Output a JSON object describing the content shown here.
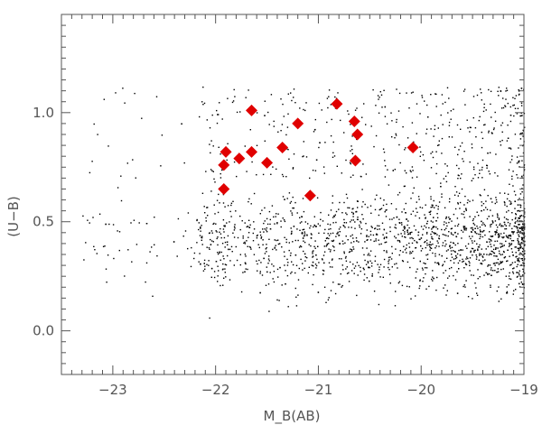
{
  "chart_data": {
    "type": "scatter",
    "title": "",
    "xlabel": "M_B(AB)",
    "ylabel": "(U−B)",
    "xlim": [
      -23.5,
      -19
    ],
    "ylim": [
      -0.2,
      1.45
    ],
    "xticks": [
      {
        "value": -23,
        "label": "−23"
      },
      {
        "value": -22,
        "label": "−22"
      },
      {
        "value": -21,
        "label": "−21"
      },
      {
        "value": -20,
        "label": "−20"
      },
      {
        "value": -19,
        "label": "−19"
      }
    ],
    "yticks": [
      {
        "value": 0.0,
        "label": "0.0"
      },
      {
        "value": 0.5,
        "label": "0.5"
      },
      {
        "value": 1.0,
        "label": "1.0"
      }
    ],
    "x_minor_step": 0.1,
    "y_minor_step": 0.05,
    "grid": false,
    "colors": {
      "highlight": "#e00000",
      "background_points": "#000000",
      "axis": "#555555"
    },
    "background_points_note_count": 2200,
    "series": [
      {
        "marker": "diamond",
        "color": "#e00000",
        "x": [
          -21.92,
          -21.65,
          -21.77,
          -21.9,
          -21.92,
          -21.65,
          -21.5,
          -21.35,
          -21.2,
          -21.08,
          -20.82,
          -20.65,
          -20.62,
          -20.64,
          -20.08
        ],
        "y": [
          0.65,
          1.01,
          0.79,
          0.82,
          0.76,
          0.82,
          0.77,
          0.84,
          0.95,
          0.62,
          1.04,
          0.96,
          0.9,
          0.78,
          0.84
        ]
      }
    ]
  }
}
